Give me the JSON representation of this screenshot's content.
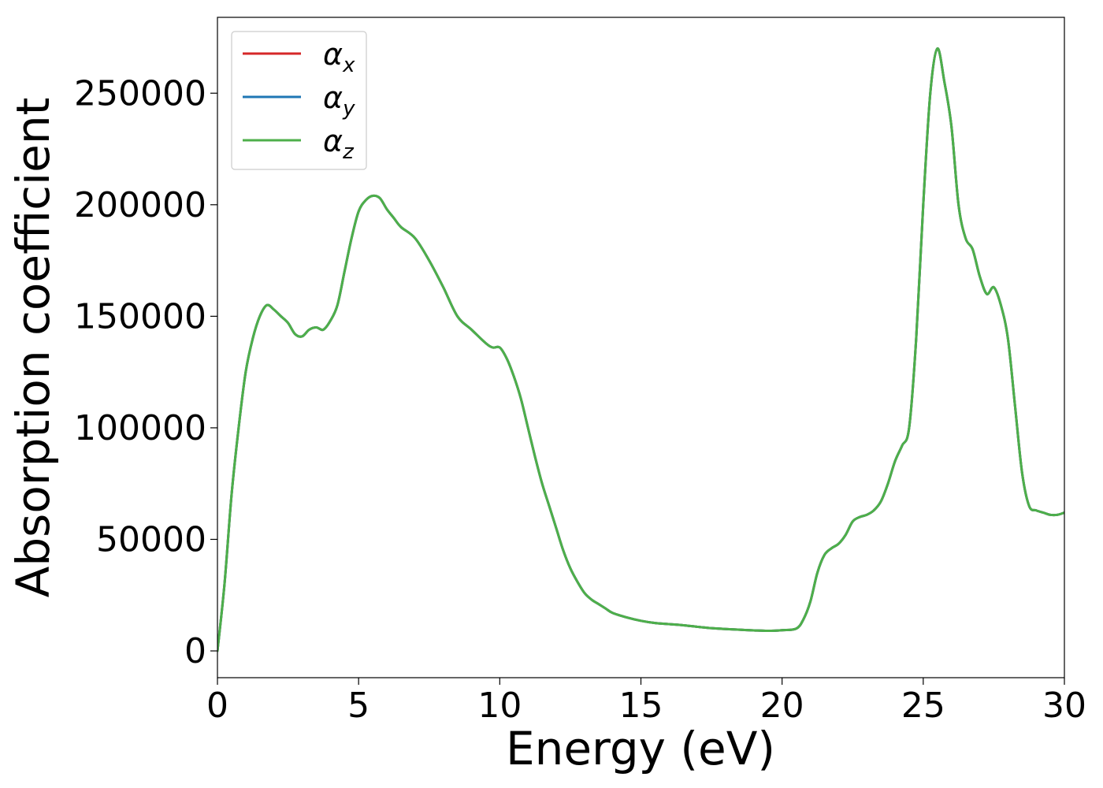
{
  "chart_data": {
    "type": "line",
    "title": "",
    "xlabel": "Energy (eV)",
    "ylabel": "Absorption coefficient",
    "xlim": [
      0,
      30
    ],
    "ylim": [
      -12000,
      284000
    ],
    "x_ticks": [
      0,
      5,
      10,
      15,
      20,
      25,
      30
    ],
    "y_ticks": [
      0,
      50000,
      100000,
      150000,
      200000,
      250000
    ],
    "grid": false,
    "legend_position": "top-left",
    "x": [
      0,
      0.25,
      0.5,
      0.75,
      1.0,
      1.25,
      1.5,
      1.75,
      2.0,
      2.25,
      2.5,
      2.75,
      3.0,
      3.25,
      3.5,
      3.75,
      4.0,
      4.25,
      4.5,
      4.75,
      5.0,
      5.25,
      5.5,
      5.75,
      6.0,
      6.25,
      6.5,
      7.0,
      7.5,
      8.0,
      8.5,
      9.0,
      9.5,
      9.75,
      10.0,
      10.25,
      10.5,
      10.75,
      11.0,
      11.25,
      11.5,
      11.75,
      12.0,
      12.25,
      12.5,
      12.75,
      13.0,
      13.25,
      13.5,
      13.75,
      14.0,
      14.5,
      15.0,
      15.5,
      16.0,
      16.5,
      17.0,
      17.5,
      18.0,
      18.5,
      19.0,
      19.5,
      20.0,
      20.5,
      20.75,
      21.0,
      21.25,
      21.5,
      21.75,
      22.0,
      22.25,
      22.5,
      22.75,
      23.0,
      23.25,
      23.5,
      23.75,
      24.0,
      24.25,
      24.5,
      24.75,
      25.0,
      25.25,
      25.5,
      25.75,
      26.0,
      26.25,
      26.5,
      26.75,
      27.0,
      27.25,
      27.5,
      27.75,
      28.0,
      28.25,
      28.5,
      28.75,
      29.0,
      29.25,
      29.5,
      29.75,
      30.0
    ],
    "series": [
      {
        "name": "α_x",
        "color": "#d62728",
        "values": [
          0,
          30000,
          70000,
          100000,
          125000,
          140000,
          150000,
          155000,
          153000,
          150000,
          147000,
          142000,
          141000,
          144000,
          145000,
          144000,
          148000,
          155000,
          170000,
          185000,
          197000,
          202000,
          204000,
          203000,
          198000,
          194000,
          190000,
          185000,
          175000,
          163000,
          150000,
          144000,
          138000,
          136000,
          136000,
          131000,
          123000,
          113000,
          100000,
          87000,
          75000,
          65000,
          55000,
          45000,
          37000,
          31000,
          26000,
          23000,
          21000,
          19000,
          17000,
          15000,
          13500,
          12500,
          12000,
          11500,
          10800,
          10200,
          9800,
          9500,
          9200,
          9000,
          9300,
          10000,
          14000,
          22000,
          35000,
          43000,
          46000,
          48000,
          52000,
          58000,
          60000,
          61000,
          63000,
          67000,
          75000,
          85000,
          92000,
          100000,
          140000,
          200000,
          250000,
          270000,
          255000,
          235000,
          200000,
          185000,
          180000,
          168000,
          160000,
          163000,
          155000,
          140000,
          110000,
          80000,
          65000,
          63000,
          62000,
          61000,
          61000,
          62000
        ]
      },
      {
        "name": "α_y",
        "color": "#1f77b4",
        "values": [
          0,
          30000,
          70000,
          100000,
          125000,
          140000,
          150000,
          155000,
          153000,
          150000,
          147000,
          142000,
          141000,
          144000,
          145000,
          144000,
          148000,
          155000,
          170000,
          185000,
          197000,
          202000,
          204000,
          203000,
          198000,
          194000,
          190000,
          185000,
          175000,
          163000,
          150000,
          144000,
          138000,
          136000,
          136000,
          131000,
          123000,
          113000,
          100000,
          87000,
          75000,
          65000,
          55000,
          45000,
          37000,
          31000,
          26000,
          23000,
          21000,
          19000,
          17000,
          15000,
          13500,
          12500,
          12000,
          11500,
          10800,
          10200,
          9800,
          9500,
          9200,
          9000,
          9300,
          10000,
          14000,
          22000,
          35000,
          43000,
          46000,
          48000,
          52000,
          58000,
          60000,
          61000,
          63000,
          67000,
          75000,
          85000,
          92000,
          100000,
          140000,
          200000,
          250000,
          270000,
          255000,
          235000,
          200000,
          185000,
          180000,
          168000,
          160000,
          163000,
          155000,
          140000,
          110000,
          80000,
          65000,
          63000,
          62000,
          61000,
          61000,
          62000
        ]
      },
      {
        "name": "α_z",
        "color": "#4daf4a",
        "values": [
          0,
          30000,
          70000,
          100000,
          125000,
          140000,
          150000,
          155000,
          153000,
          150000,
          147000,
          142000,
          141000,
          144000,
          145000,
          144000,
          148000,
          155000,
          170000,
          185000,
          197000,
          202000,
          204000,
          203000,
          198000,
          194000,
          190000,
          185000,
          175000,
          163000,
          150000,
          144000,
          138000,
          136000,
          136000,
          131000,
          123000,
          113000,
          100000,
          87000,
          75000,
          65000,
          55000,
          45000,
          37000,
          31000,
          26000,
          23000,
          21000,
          19000,
          17000,
          15000,
          13500,
          12500,
          12000,
          11500,
          10800,
          10200,
          9800,
          9500,
          9200,
          9000,
          9300,
          10000,
          14000,
          22000,
          35000,
          43000,
          46000,
          48000,
          52000,
          58000,
          60000,
          61000,
          63000,
          67000,
          75000,
          85000,
          92000,
          100000,
          140000,
          200000,
          250000,
          270000,
          255000,
          235000,
          200000,
          185000,
          180000,
          168000,
          160000,
          163000,
          155000,
          140000,
          110000,
          80000,
          65000,
          63000,
          62000,
          61000,
          61000,
          62000
        ]
      }
    ]
  }
}
